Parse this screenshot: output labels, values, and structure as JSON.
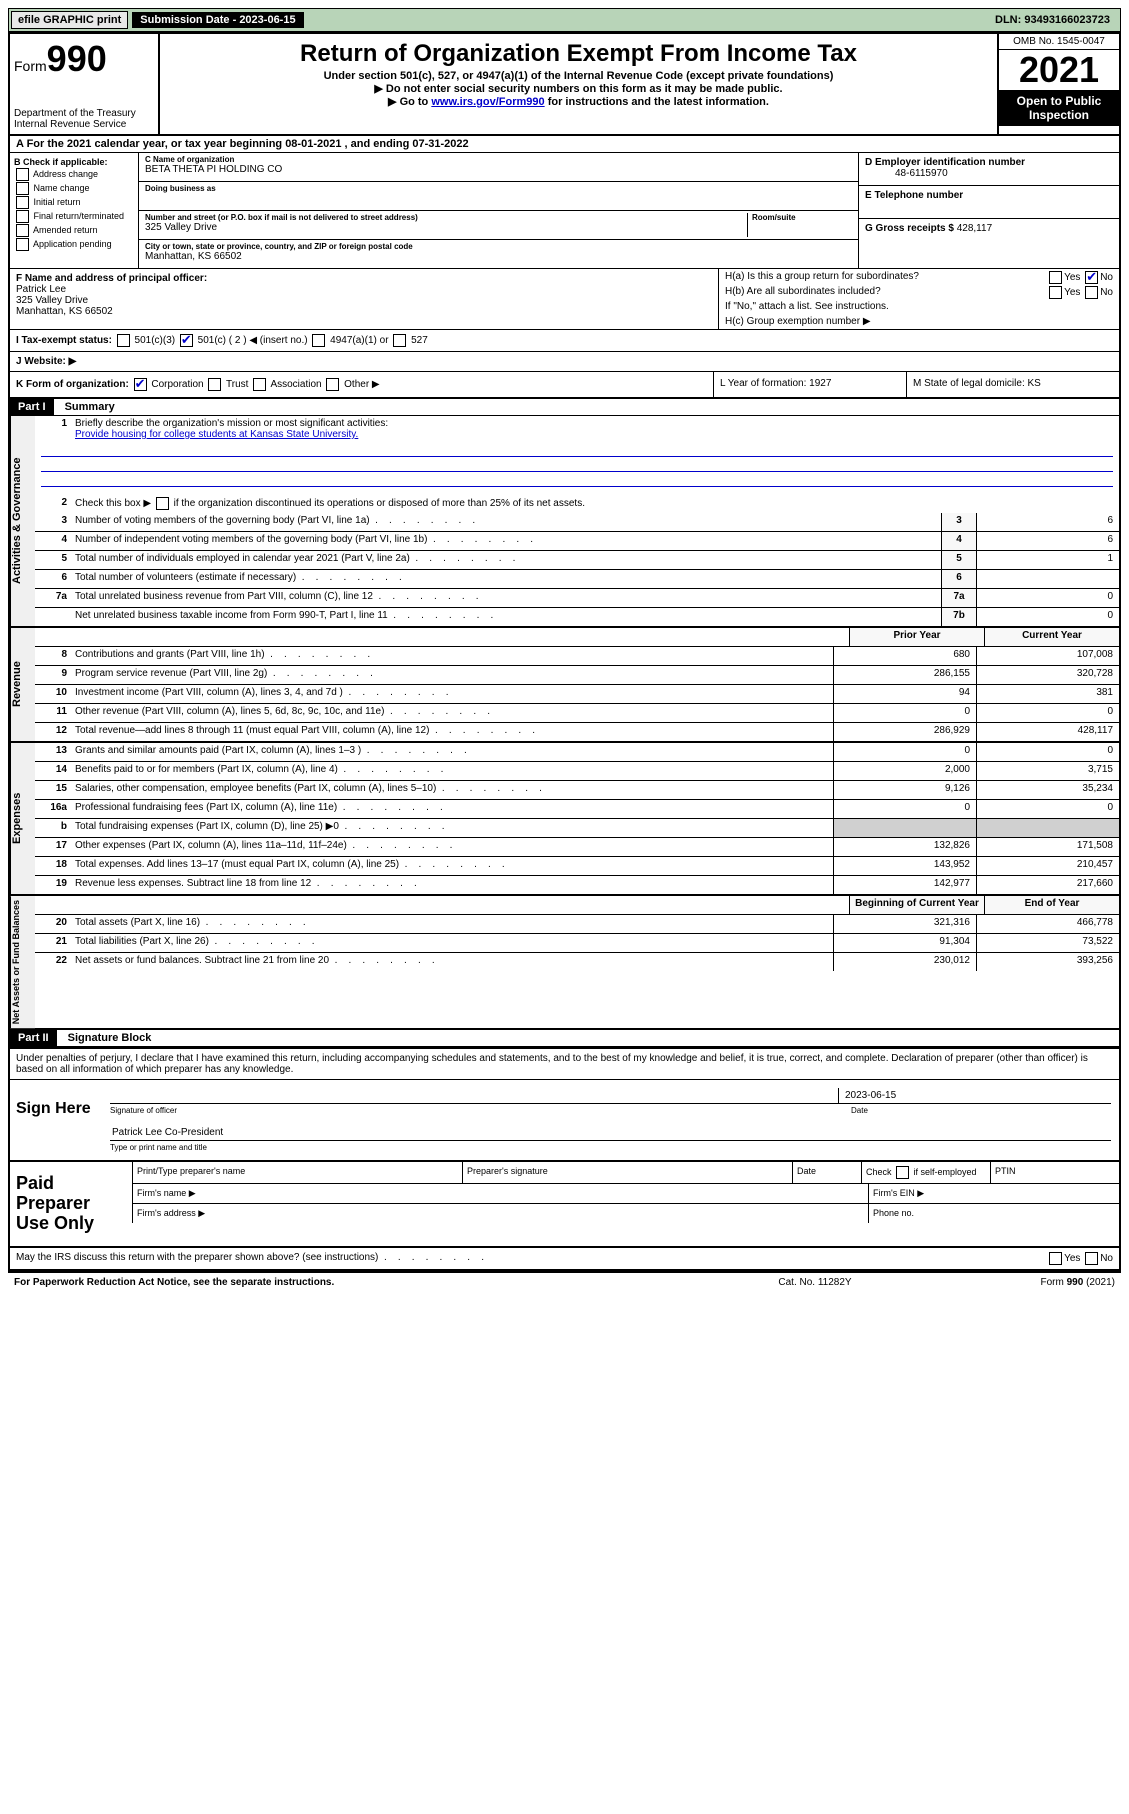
{
  "topbar": {
    "efile": "efile GRAPHIC print",
    "submission_label": "Submission Date - 2023-06-15",
    "dln": "DLN: 93493166023723"
  },
  "header": {
    "form_prefix": "Form",
    "form_number": "990",
    "dept": "Department of the Treasury",
    "irs": "Internal Revenue Service",
    "title": "Return of Organization Exempt From Income Tax",
    "sub1": "Under section 501(c), 527, or 4947(a)(1) of the Internal Revenue Code (except private foundations)",
    "sub2": "▶ Do not enter social security numbers on this form as it may be made public.",
    "sub3_prefix": "▶ Go to ",
    "sub3_link": "www.irs.gov/Form990",
    "sub3_suffix": " for instructions and the latest information.",
    "omb": "OMB No. 1545-0047",
    "year": "2021",
    "open": "Open to Public Inspection"
  },
  "line_a": "A For the 2021 calendar year, or tax year beginning 08-01-2021   , and ending 07-31-2022",
  "section_b": {
    "label": "B Check if applicable:",
    "opts": [
      "Address change",
      "Name change",
      "Initial return",
      "Final return/terminated",
      "Amended return",
      "Application pending"
    ],
    "c_label": "C Name of organization",
    "c_name": "BETA THETA PI HOLDING CO",
    "dba_label": "Doing business as",
    "addr_label": "Number and street (or P.O. box if mail is not delivered to street address)",
    "room_label": "Room/suite",
    "addr": "325 Valley Drive",
    "city_label": "City or town, state or province, country, and ZIP or foreign postal code",
    "city": "Manhattan, KS   66502",
    "d_label": "D Employer identification number",
    "d_ein": "48-6115970",
    "e_label": "E Telephone number",
    "g_label": "G Gross receipts $",
    "g_val": "428,117"
  },
  "section_fh": {
    "f_label": "F Name and address of principal officer:",
    "f_name": "Patrick Lee",
    "f_addr1": "325 Valley Drive",
    "f_addr2": "Manhattan, KS   66502",
    "ha": "H(a)  Is this a group return for subordinates?",
    "hb": "H(b)  Are all subordinates included?",
    "hb_note": "If \"No,\" attach a list. See instructions.",
    "hc": "H(c)  Group exemption number ▶",
    "yes": "Yes",
    "no": "No"
  },
  "line_i": {
    "label": "I   Tax-exempt status:",
    "opts": [
      "501(c)(3)",
      "501(c) ( 2 ) ◀ (insert no.)",
      "4947(a)(1) or",
      "527"
    ]
  },
  "line_j": "J   Website: ▶",
  "line_k": {
    "label": "K Form of organization:",
    "opts": [
      "Corporation",
      "Trust",
      "Association",
      "Other ▶"
    ],
    "l": "L Year of formation: 1927",
    "m": "M State of legal domicile: KS"
  },
  "parts": {
    "p1": "Part I",
    "p1_title": "Summary",
    "p2": "Part II",
    "p2_title": "Signature Block"
  },
  "vtabs": {
    "act": "Activities & Governance",
    "rev": "Revenue",
    "exp": "Expenses",
    "net": "Net Assets or Fund Balances"
  },
  "summary": {
    "l1": "Briefly describe the organization's mission or most significant activities:",
    "l1_text": "Provide housing for college students at Kansas State University.",
    "l2": "Check this box ▶        if the organization discontinued its operations or disposed of more than 25% of its net assets.",
    "rows_gov": [
      {
        "n": "3",
        "d": "Number of voting members of the governing body (Part VI, line 1a)",
        "b": "3",
        "v": "6"
      },
      {
        "n": "4",
        "d": "Number of independent voting members of the governing body (Part VI, line 1b)",
        "b": "4",
        "v": "6"
      },
      {
        "n": "5",
        "d": "Total number of individuals employed in calendar year 2021 (Part V, line 2a)",
        "b": "5",
        "v": "1"
      },
      {
        "n": "6",
        "d": "Total number of volunteers (estimate if necessary)",
        "b": "6",
        "v": ""
      },
      {
        "n": "7a",
        "d": "Total unrelated business revenue from Part VIII, column (C), line 12",
        "b": "7a",
        "v": "0"
      },
      {
        "n": "",
        "d": "Net unrelated business taxable income from Form 990-T, Part I, line 11",
        "b": "7b",
        "v": "0"
      }
    ],
    "hdr_prior": "Prior Year",
    "hdr_curr": "Current Year",
    "rows_rev": [
      {
        "n": "8",
        "d": "Contributions and grants (Part VIII, line 1h)",
        "p": "680",
        "c": "107,008"
      },
      {
        "n": "9",
        "d": "Program service revenue (Part VIII, line 2g)",
        "p": "286,155",
        "c": "320,728"
      },
      {
        "n": "10",
        "d": "Investment income (Part VIII, column (A), lines 3, 4, and 7d )",
        "p": "94",
        "c": "381"
      },
      {
        "n": "11",
        "d": "Other revenue (Part VIII, column (A), lines 5, 6d, 8c, 9c, 10c, and 11e)",
        "p": "0",
        "c": "0"
      },
      {
        "n": "12",
        "d": "Total revenue—add lines 8 through 11 (must equal Part VIII, column (A), line 12)",
        "p": "286,929",
        "c": "428,117"
      }
    ],
    "rows_exp": [
      {
        "n": "13",
        "d": "Grants and similar amounts paid (Part IX, column (A), lines 1–3 )",
        "p": "0",
        "c": "0"
      },
      {
        "n": "14",
        "d": "Benefits paid to or for members (Part IX, column (A), line 4)",
        "p": "2,000",
        "c": "3,715"
      },
      {
        "n": "15",
        "d": "Salaries, other compensation, employee benefits (Part IX, column (A), lines 5–10)",
        "p": "9,126",
        "c": "35,234"
      },
      {
        "n": "16a",
        "d": "Professional fundraising fees (Part IX, column (A), line 11e)",
        "p": "0",
        "c": "0"
      },
      {
        "n": "b",
        "d": "Total fundraising expenses (Part IX, column (D), line 25) ▶0",
        "p": "",
        "c": "",
        "shade": true
      },
      {
        "n": "17",
        "d": "Other expenses (Part IX, column (A), lines 11a–11d, 11f–24e)",
        "p": "132,826",
        "c": "171,508"
      },
      {
        "n": "18",
        "d": "Total expenses. Add lines 13–17 (must equal Part IX, column (A), line 25)",
        "p": "143,952",
        "c": "210,457"
      },
      {
        "n": "19",
        "d": "Revenue less expenses. Subtract line 18 from line 12",
        "p": "142,977",
        "c": "217,660"
      }
    ],
    "hdr_beg": "Beginning of Current Year",
    "hdr_end": "End of Year",
    "rows_net": [
      {
        "n": "20",
        "d": "Total assets (Part X, line 16)",
        "p": "321,316",
        "c": "466,778"
      },
      {
        "n": "21",
        "d": "Total liabilities (Part X, line 26)",
        "p": "91,304",
        "c": "73,522"
      },
      {
        "n": "22",
        "d": "Net assets or fund balances. Subtract line 21 from line 20",
        "p": "230,012",
        "c": "393,256"
      }
    ]
  },
  "sig": {
    "decl": "Under penalties of perjury, I declare that I have examined this return, including accompanying schedules and statements, and to the best of my knowledge and belief, it is true, correct, and complete. Declaration of preparer (other than officer) is based on all information of which preparer has any knowledge.",
    "sign_here": "Sign Here",
    "sig_officer": "Signature of officer",
    "date": "Date",
    "date_val": "2023-06-15",
    "name_title": "Patrick Lee Co-President",
    "name_caption": "Type or print name and title",
    "paid": "Paid Preparer Use Only",
    "pt_name": "Print/Type preparer's name",
    "pt_sig": "Preparer's signature",
    "pt_date": "Date",
    "pt_check": "Check          if self-employed",
    "pt_ptin": "PTIN",
    "firm_name": "Firm's name    ▶",
    "firm_ein": "Firm's EIN ▶",
    "firm_addr": "Firm's address ▶",
    "phone": "Phone no.",
    "discuss": "May the IRS discuss this return with the preparer shown above? (see instructions)"
  },
  "footer": {
    "l": "For Paperwork Reduction Act Notice, see the separate instructions.",
    "m": "Cat. No. 11282Y",
    "r": "Form 990 (2021)"
  }
}
